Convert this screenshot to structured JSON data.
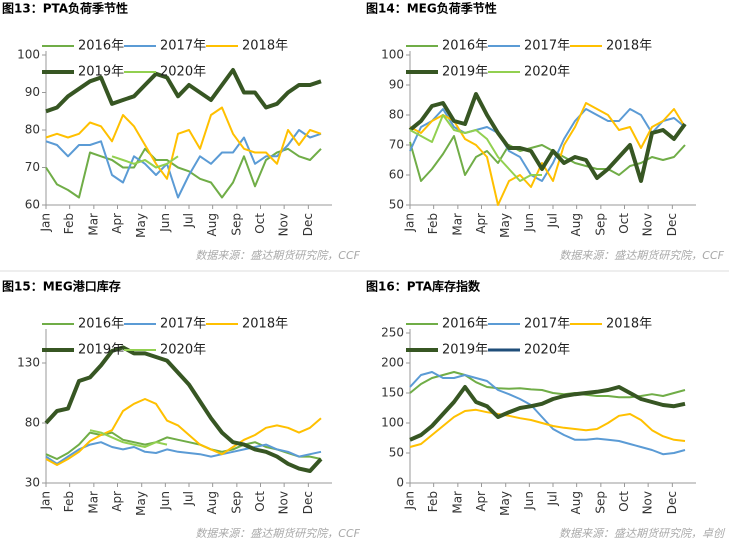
{
  "chart_data": [
    {
      "type": "line",
      "title": "图13：PTA负荷季节性",
      "source": "数据来源：盛达期货研究院，CCF",
      "x": [
        0,
        2,
        4,
        6,
        8,
        10,
        12,
        14,
        16,
        18,
        20,
        22,
        24,
        26,
        28,
        30,
        32,
        34,
        36,
        38,
        40,
        42,
        44,
        46,
        48,
        50
      ],
      "xlim": [
        0,
        52
      ],
      "xticks": [
        {
          "value": 0,
          "label": "Jan"
        },
        {
          "value": 4.3,
          "label": "Feb"
        },
        {
          "value": 8.7,
          "label": "Mar"
        },
        {
          "value": 13,
          "label": "Apr"
        },
        {
          "value": 17.4,
          "label": "May"
        },
        {
          "value": 21.7,
          "label": "Jun"
        },
        {
          "value": 26,
          "label": "Jul"
        },
        {
          "value": 30.3,
          "label": "Aug"
        },
        {
          "value": 34.7,
          "label": "Sep"
        },
        {
          "value": 39,
          "label": "Oct"
        },
        {
          "value": 43.3,
          "label": "Nov"
        },
        {
          "value": 47.7,
          "label": "Dec"
        }
      ],
      "ylim": [
        60,
        100
      ],
      "yticks": [
        60,
        70,
        80,
        90,
        100
      ],
      "grid": false,
      "series": [
        {
          "name": "2016年",
          "color": "#70ad47",
          "line_width": 2,
          "values": [
            70,
            65.5,
            64,
            62,
            74,
            73,
            72,
            70,
            70,
            75,
            72,
            72,
            70,
            69,
            67,
            66,
            62,
            66,
            73,
            65,
            72,
            74,
            75,
            73,
            72,
            75
          ]
        },
        {
          "name": "2017年",
          "color": "#5b9bd5",
          "line_width": 2,
          "values": [
            77,
            76,
            73,
            76,
            76,
            77,
            68,
            66,
            73,
            71,
            68,
            71,
            62,
            68,
            73,
            71,
            74,
            74,
            78,
            71,
            73,
            73,
            76,
            80,
            78,
            79
          ]
        },
        {
          "name": "2018年",
          "color": "#ffc000",
          "line_width": 2,
          "values": [
            78,
            79,
            78,
            79,
            82,
            81,
            77,
            84,
            81,
            76,
            71,
            67,
            79,
            80,
            75,
            84,
            86,
            79,
            75,
            74,
            74,
            71,
            80,
            76,
            80,
            79
          ]
        },
        {
          "name": "2019年",
          "color": "#375623",
          "line_width": 4,
          "values": [
            85,
            86,
            89,
            91,
            93,
            94,
            87,
            88,
            89,
            92,
            95,
            94,
            89,
            92,
            90,
            88,
            92,
            96,
            90,
            90,
            86,
            87,
            90,
            92,
            92,
            93
          ]
        },
        {
          "name": "2020年",
          "color": "#92d050",
          "line_width": 2,
          "values": [
            null,
            null,
            null,
            null,
            null,
            null,
            73,
            72,
            71,
            72,
            70,
            71,
            73,
            null,
            null,
            null,
            null,
            null,
            null,
            null,
            null,
            null,
            null,
            null,
            null,
            null
          ]
        }
      ]
    },
    {
      "type": "line",
      "title": "图14：MEG负荷季节性",
      "source": "数据来源：盛达期货研究院，CCF",
      "x": [
        0,
        2,
        4,
        6,
        8,
        10,
        12,
        14,
        16,
        18,
        20,
        22,
        24,
        26,
        28,
        30,
        32,
        34,
        36,
        38,
        40,
        42,
        44,
        46,
        48,
        50
      ],
      "xlim": [
        0,
        52
      ],
      "xticks": [
        {
          "value": 0,
          "label": "Jan"
        },
        {
          "value": 4.3,
          "label": "Feb"
        },
        {
          "value": 8.7,
          "label": "Mar"
        },
        {
          "value": 13,
          "label": "Apr"
        },
        {
          "value": 17.4,
          "label": "May"
        },
        {
          "value": 21.7,
          "label": "Jun"
        },
        {
          "value": 26,
          "label": "Jul"
        },
        {
          "value": 30.3,
          "label": "Aug"
        },
        {
          "value": 34.7,
          "label": "Sep"
        },
        {
          "value": 39,
          "label": "Oct"
        },
        {
          "value": 43.3,
          "label": "Nov"
        },
        {
          "value": 47.7,
          "label": "Dec"
        }
      ],
      "ylim": [
        50,
        100
      ],
      "yticks": [
        50,
        60,
        70,
        80,
        90,
        100
      ],
      "grid": false,
      "series": [
        {
          "name": "2016年",
          "color": "#70ad47",
          "line_width": 2,
          "values": [
            71,
            58,
            62,
            67,
            73,
            60,
            66,
            68,
            64,
            70,
            68,
            69,
            70,
            68,
            66,
            64,
            63,
            62,
            62,
            60,
            63,
            64,
            66,
            65,
            66,
            70
          ]
        },
        {
          "name": "2017年",
          "color": "#5b9bd5",
          "line_width": 2,
          "values": [
            68,
            76,
            78,
            82,
            76,
            74,
            75,
            76,
            74,
            68,
            66,
            60,
            58,
            64,
            72,
            78,
            82,
            80,
            78,
            78,
            82,
            80,
            74,
            78,
            79,
            76
          ]
        },
        {
          "name": "2018年",
          "color": "#ffc000",
          "line_width": 2,
          "values": [
            76,
            74,
            78,
            80,
            78,
            72,
            70,
            66,
            50,
            58,
            60,
            56,
            64,
            58,
            70,
            76,
            84,
            82,
            80,
            75,
            76,
            69,
            76,
            78,
            82,
            76
          ]
        },
        {
          "name": "2019年",
          "color": "#375623",
          "line_width": 4,
          "values": [
            75,
            78,
            83,
            84,
            78,
            77,
            87,
            80,
            74,
            69,
            69,
            68,
            62,
            68,
            64,
            66,
            65,
            59,
            62,
            66,
            70,
            58,
            74,
            75,
            72,
            77
          ]
        },
        {
          "name": "2020年",
          "color": "#92d050",
          "line_width": 2,
          "values": [
            75,
            73,
            71,
            80,
            75,
            74,
            75,
            72,
            66,
            62,
            58,
            60,
            60,
            null,
            null,
            null,
            null,
            null,
            null,
            null,
            null,
            null,
            null,
            null,
            null,
            null
          ]
        }
      ]
    },
    {
      "type": "line",
      "title": "图15：MEG港口库存",
      "source": "数据来源：盛达期货研究院，CCF",
      "x": [
        0,
        2,
        4,
        6,
        8,
        10,
        12,
        14,
        16,
        18,
        20,
        22,
        24,
        26,
        28,
        30,
        32,
        34,
        36,
        38,
        40,
        42,
        44,
        46,
        48,
        50
      ],
      "xlim": [
        0,
        52
      ],
      "xticks": [
        {
          "value": 0,
          "label": "Jan"
        },
        {
          "value": 4.3,
          "label": "Feb"
        },
        {
          "value": 8.7,
          "label": "Mar"
        },
        {
          "value": 13,
          "label": "Apr"
        },
        {
          "value": 17.4,
          "label": "May"
        },
        {
          "value": 21.7,
          "label": "Jun"
        },
        {
          "value": 26,
          "label": "Jul"
        },
        {
          "value": 30.3,
          "label": "Aug"
        },
        {
          "value": 34.7,
          "label": "Sep"
        },
        {
          "value": 39,
          "label": "Oct"
        },
        {
          "value": 43.3,
          "label": "Nov"
        },
        {
          "value": 47.7,
          "label": "Dec"
        }
      ],
      "ylim": [
        30,
        155
      ],
      "yticks": [
        30,
        80,
        130
      ],
      "grid": false,
      "series": [
        {
          "name": "2016年",
          "color": "#70ad47",
          "line_width": 2,
          "values": [
            54,
            50,
            55,
            62,
            72,
            70,
            72,
            66,
            64,
            62,
            64,
            68,
            66,
            64,
            62,
            58,
            56,
            58,
            62,
            64,
            60,
            58,
            55,
            52,
            52,
            50
          ]
        },
        {
          "name": "2017年",
          "color": "#5b9bd5",
          "line_width": 2,
          "values": [
            52,
            46,
            52,
            58,
            62,
            64,
            60,
            58,
            60,
            56,
            55,
            58,
            56,
            55,
            54,
            52,
            54,
            56,
            58,
            60,
            62,
            58,
            56,
            52,
            54,
            56
          ]
        },
        {
          "name": "2018年",
          "color": "#ffc000",
          "line_width": 2,
          "values": [
            50,
            45,
            50,
            56,
            65,
            70,
            74,
            90,
            96,
            100,
            96,
            82,
            78,
            70,
            62,
            58,
            54,
            60,
            66,
            70,
            76,
            78,
            76,
            72,
            76,
            84
          ]
        },
        {
          "name": "2019年",
          "color": "#375623",
          "line_width": 4,
          "values": [
            80,
            90,
            92,
            115,
            118,
            128,
            140,
            143,
            138,
            138,
            135,
            132,
            122,
            112,
            98,
            84,
            72,
            64,
            62,
            58,
            56,
            52,
            46,
            42,
            40,
            50
          ]
        },
        {
          "name": "2020年",
          "color": "#92d050",
          "line_width": 2,
          "values": [
            null,
            null,
            null,
            null,
            74,
            72,
            68,
            64,
            62,
            60,
            64,
            62,
            null,
            null,
            null,
            null,
            null,
            null,
            null,
            null,
            null,
            null,
            null,
            null,
            null,
            null
          ]
        }
      ]
    },
    {
      "type": "line",
      "title": "图16：PTA库存指数",
      "source": "数据来源：盛达期货研究院，卓创",
      "x": [
        0,
        2,
        4,
        6,
        8,
        10,
        12,
        14,
        16,
        18,
        20,
        22,
        24,
        26,
        28,
        30,
        32,
        34,
        36,
        38,
        40,
        42,
        44,
        46,
        48,
        50
      ],
      "xlim": [
        0,
        52
      ],
      "xticks": [
        {
          "value": 0,
          "label": "Jan"
        },
        {
          "value": 4.3,
          "label": "Feb"
        },
        {
          "value": 8.7,
          "label": "Mar"
        },
        {
          "value": 13,
          "label": "Apr"
        },
        {
          "value": 17.4,
          "label": "May"
        },
        {
          "value": 21.7,
          "label": "Jun"
        },
        {
          "value": 26,
          "label": "Jul"
        },
        {
          "value": 30.3,
          "label": "Aug"
        },
        {
          "value": 34.7,
          "label": "Sep"
        },
        {
          "value": 39,
          "label": "Oct"
        },
        {
          "value": 43.3,
          "label": "Nov"
        },
        {
          "value": 47.7,
          "label": "Dec"
        }
      ],
      "ylim": [
        0,
        250
      ],
      "yticks": [
        0,
        50,
        100,
        150,
        200,
        250
      ],
      "grid": false,
      "series": [
        {
          "name": "2016年",
          "color": "#70ad47",
          "line_width": 2,
          "values": [
            150,
            165,
            175,
            180,
            185,
            180,
            168,
            160,
            158,
            157,
            158,
            156,
            155,
            150,
            148,
            150,
            147,
            145,
            145,
            143,
            143,
            145,
            148,
            145,
            150,
            155
          ]
        },
        {
          "name": "2017年",
          "color": "#5b9bd5",
          "line_width": 2,
          "values": [
            160,
            180,
            185,
            175,
            175,
            180,
            175,
            170,
            155,
            148,
            140,
            130,
            110,
            90,
            80,
            72,
            72,
            74,
            72,
            70,
            65,
            60,
            55,
            48,
            50,
            55
          ]
        },
        {
          "name": "2018年",
          "color": "#ffc000",
          "line_width": 2,
          "values": [
            60,
            65,
            80,
            95,
            110,
            120,
            122,
            118,
            115,
            112,
            108,
            105,
            100,
            95,
            92,
            90,
            88,
            90,
            100,
            112,
            115,
            105,
            88,
            78,
            72,
            70
          ]
        },
        {
          "name": "2019年",
          "color": "#375623",
          "line_width": 4,
          "values": [
            72,
            80,
            95,
            115,
            135,
            160,
            135,
            128,
            110,
            118,
            125,
            128,
            132,
            140,
            145,
            148,
            150,
            152,
            155,
            160,
            150,
            140,
            135,
            130,
            128,
            132
          ]
        },
        {
          "name": "2020年",
          "color": "#1f4e79",
          "line_width": 3,
          "values": [
            null,
            null,
            null,
            null,
            null,
            null,
            null,
            null,
            null,
            null,
            null,
            null,
            null,
            null,
            null,
            null,
            null,
            null,
            null,
            null,
            null,
            null,
            null,
            null,
            null,
            null
          ]
        }
      ]
    }
  ]
}
